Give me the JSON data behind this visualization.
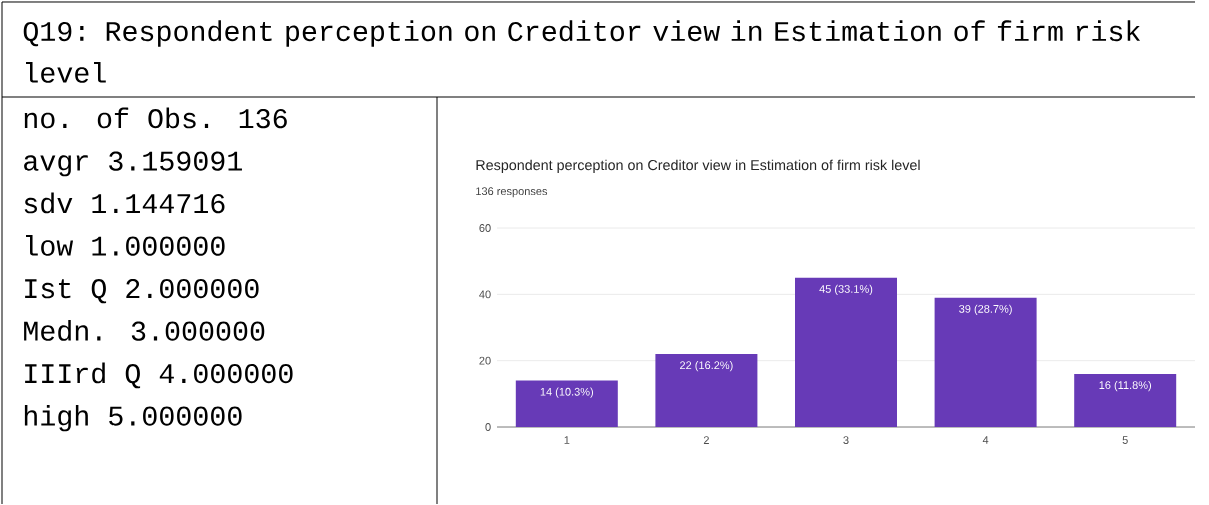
{
  "chart_data": [
    {
      "type": "other",
      "title": "Q19: Respondent perception on Creditor view in Estimation of firm risk   level",
      "annotations": [
        "no. of Obs.      136",
        "avgr         3.159091",
        "sdv          1.144716",
        "low          1.000000",
        "Ist Q        2.000000",
        "Medn.        3.000000",
        "IIIrd Q      4.000000",
        "high         5.000000"
      ]
    },
    {
      "type": "bar",
      "title": "Respondent perception on Creditor view in Estimation of firm risk level",
      "subtitle": "136 responses",
      "categories": [
        "1",
        "2",
        "3",
        "4",
        "5"
      ],
      "values": [
        14,
        22,
        45,
        39,
        16
      ],
      "value_labels": [
        "14 (10.3%)",
        "22 (16.2%)",
        "45 (33.1%)",
        "39 (28.7%)",
        "16 (11.8%)"
      ],
      "color": "#673ab7",
      "ylim": [
        0,
        60
      ],
      "yticks": [
        0,
        20,
        40,
        60
      ],
      "grid": "y"
    }
  ]
}
